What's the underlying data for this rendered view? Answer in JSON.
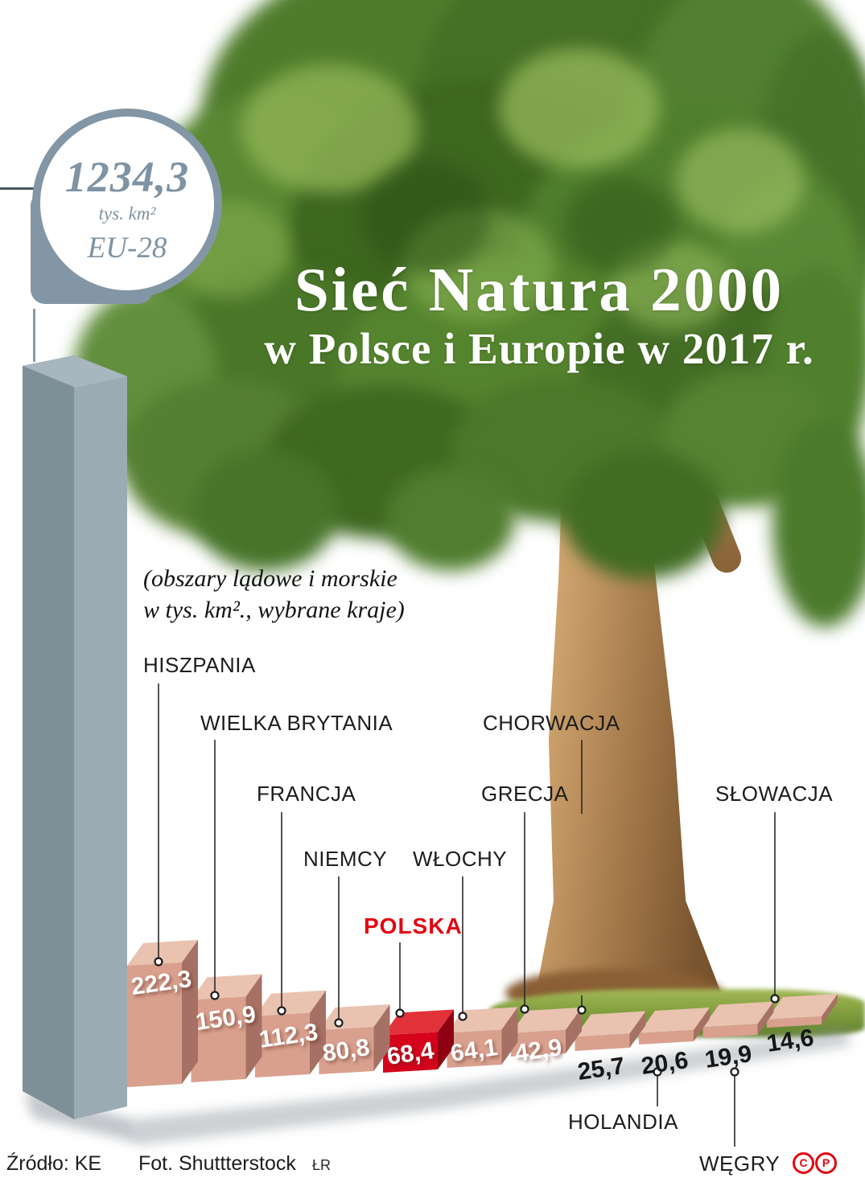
{
  "badge": {
    "value": "1234,3",
    "unit": "tys. km²",
    "label": "EU-28"
  },
  "title": {
    "line1": "Sieć Natura 2000",
    "line2": "w Polsce i Europie w 2017 r."
  },
  "subtitle": {
    "line1": "(obszary lądowe i morskie",
    "line2": "w tys. km²., wybrane kraje)"
  },
  "chart_data": {
    "type": "bar",
    "title": "Sieć Natura 2000 w Polsce i Europie w 2017 r.",
    "subtitle": "(obszary lądowe i morskie w tys. km², wybrane kraje)",
    "unit": "tys. km²",
    "reference_total": {
      "label": "EU-28",
      "value": 1234.3,
      "display": "1234,3"
    },
    "categories": [
      "HISZPANIA",
      "WIELKA BRYTANIA",
      "FRANCJA",
      "NIEMCY",
      "POLSKA",
      "WŁOCHY",
      "GRECJA",
      "CHORWACJA",
      "HOLANDIA",
      "WĘGRY",
      "SŁOWACJA"
    ],
    "values": [
      222.3,
      150.9,
      112.3,
      80.8,
      68.4,
      64.1,
      42.9,
      25.7,
      20.6,
      19.9,
      14.6
    ],
    "value_labels": [
      "222,3",
      "150,9",
      "112,3",
      "80,8",
      "68,4",
      "64,1",
      "42,9",
      "25,7",
      "20,6",
      "19,9",
      "14,6"
    ],
    "highlight_category": "POLSKA",
    "highlight_color": "#d5031b",
    "bar_color": "#d9a08e",
    "eu_bar_color": "#9aabb4",
    "legend_position": "none",
    "grid": false
  },
  "footer": {
    "source": "Źródło: KE",
    "photo_credit": "Fot. Shuttterstock",
    "initials": "ŁR",
    "icon1": "C",
    "icon2": "P"
  },
  "colors": {
    "accent_red": "#e30613",
    "slate": "#8296a6",
    "badge_text": "#7e93a3",
    "label_dark": "#1d1d1b"
  }
}
